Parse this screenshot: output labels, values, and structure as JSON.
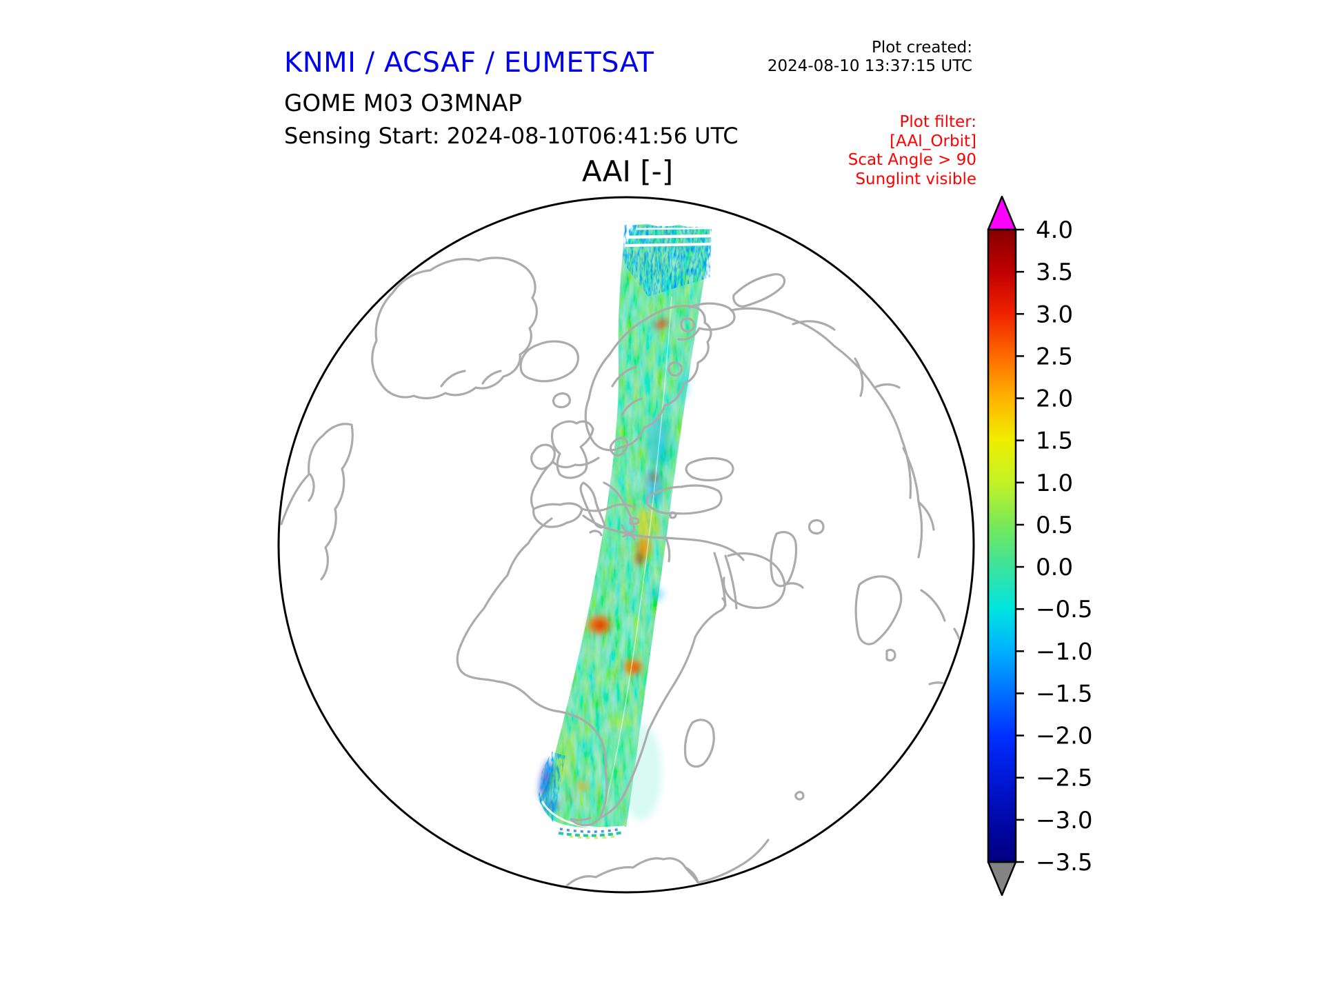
{
  "header": {
    "org_title": "KNMI / ACSAF / EUMETSAT",
    "org_title_color": "#0000f0",
    "plot_created_label": "Plot created:",
    "plot_created_timestamp": "2024-08-10 13:37:15 UTC",
    "product_title": "GOME M03 O3MNAP",
    "sensing_start": "Sensing Start: 2024-08-10T06:41:56 UTC",
    "plot_filter": {
      "color": "#ff0000",
      "lines": [
        "Plot filter:",
        "[AAI_Orbit]",
        "Scat Angle > 90",
        "Sunglint visible"
      ]
    }
  },
  "map": {
    "title": "AAI [-]",
    "projection": "orthographic-globe",
    "coastline_color": "#ababab",
    "globe_outline_color": "#000000",
    "swath_description": "GOME-2 Metop satellite orbit swath colored by Absorbing Aerosol Index"
  },
  "colorbar": {
    "quantity": "AAI [-]",
    "ticks": [
      "4.0",
      "3.5",
      "3.0",
      "2.5",
      "2.0",
      "1.5",
      "1.0",
      "0.5",
      "0.0",
      "−0.5",
      "−1.0",
      "−1.5",
      "−2.0",
      "−2.5",
      "−3.0",
      "−3.5"
    ],
    "value_max": 4.0,
    "value_min": -3.5,
    "over_arrow_color": "#ff00ff",
    "under_arrow_color": "#848484",
    "stops": [
      {
        "v": 4.0,
        "c": "#860000"
      },
      {
        "v": 3.5,
        "c": "#c00000"
      },
      {
        "v": 3.0,
        "c": "#ef2200"
      },
      {
        "v": 2.5,
        "c": "#ff6a00"
      },
      {
        "v": 2.0,
        "c": "#ffb300"
      },
      {
        "v": 1.5,
        "c": "#f0ee00"
      },
      {
        "v": 1.0,
        "c": "#c3f225"
      },
      {
        "v": 0.5,
        "c": "#79e858"
      },
      {
        "v": 0.0,
        "c": "#3ce39c"
      },
      {
        "v": -0.5,
        "c": "#00e5e0"
      },
      {
        "v": -1.0,
        "c": "#00b0ff"
      },
      {
        "v": -1.5,
        "c": "#0070ff"
      },
      {
        "v": -2.0,
        "c": "#0030ff"
      },
      {
        "v": -2.5,
        "c": "#0018d8"
      },
      {
        "v": -3.0,
        "c": "#0008a8"
      },
      {
        "v": -3.5,
        "c": "#000080"
      }
    ]
  }
}
